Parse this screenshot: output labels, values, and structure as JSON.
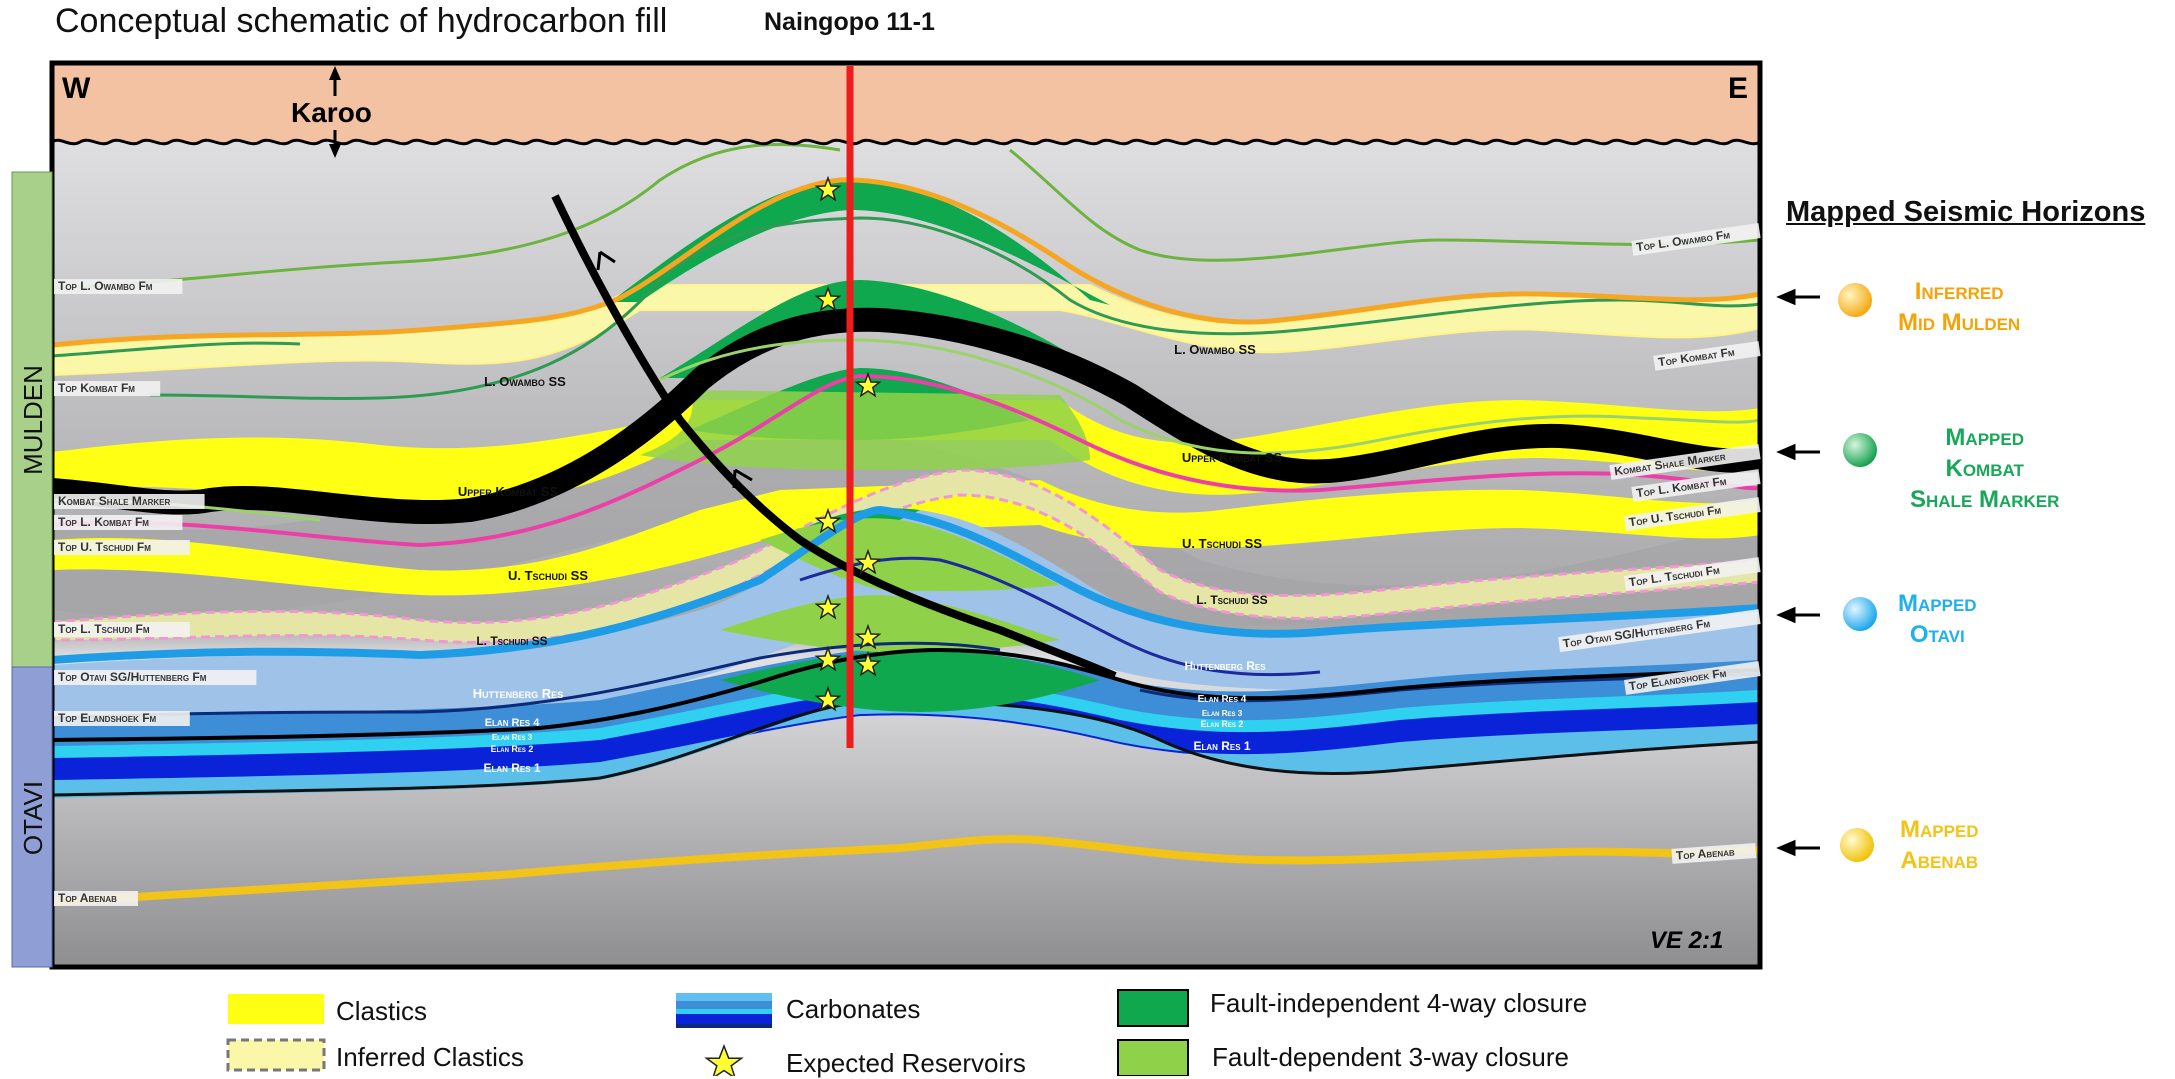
{
  "title": "Conceptual schematic of hydrocarbon fill",
  "well": "Naingopo 11-1",
  "compass": {
    "west": "W",
    "east": "E"
  },
  "karoo": "Karoo",
  "ve": "VE 2:1",
  "groups": {
    "mulden": "MULDEN",
    "otavi": "OTAVI"
  },
  "left_labels": [
    "Top L. Owambo Fm",
    "Top Kombat Fm",
    "Kombat Shale Marker",
    "Top L. Kombat Fm",
    "Top U. Tschudi Fm",
    "Top L. Tschudi Fm",
    "Top Otavi SG/Huttenberg Fm",
    "Top Elandshoek Fm",
    "Top Abenab"
  ],
  "right_labels": [
    "Top L. Owambo Fm",
    "Top Kombat Fm",
    "Kombat Shale Marker",
    "Top L. Kombat Fm",
    "Top U. Tschudi Fm",
    "Top L. Tschudi Fm",
    "Top Otavi SG/Huttenberg Fm",
    "Top Elandshoek Fm",
    "Top Abenab"
  ],
  "unit_labels": {
    "l_owambo_ss": "L. Owambo SS",
    "upper_kombat_ss": "Upper Kombat SS",
    "u_tschudi_ss": "U. Tschudi SS",
    "l_tschudi_ss": "L. Tschudi SS",
    "huttenberg_res": "Huttenberg Res",
    "elan_res_4": "Elan Res 4",
    "elan_res_3": "Elan Res 3",
    "elan_res_2": "Elan Res 2",
    "elan_res_1": "Elan Res 1"
  },
  "horizons": {
    "title": "Mapped Seismic Horizons",
    "items": [
      {
        "lines": [
          "Inferred",
          "Mid Mulden"
        ],
        "color": "#f5b324"
      },
      {
        "lines": [
          "Mapped",
          "Kombat",
          "Shale Marker"
        ],
        "color": "#18a85a"
      },
      {
        "lines": [
          "Mapped",
          "Otavi"
        ],
        "color": "#1fb0ee"
      },
      {
        "lines": [
          "Mapped",
          "Abenab"
        ],
        "color": "#f2c417"
      }
    ]
  },
  "legend": {
    "clastics": "Clastics",
    "inferred_clastics": "Inferred Clastics",
    "carbonates": "Carbonates",
    "expected_reservoirs": "Expected Reservoirs",
    "four_way": "Fault-independent 4-way closure",
    "three_way": "Fault-dependent 3-way closure"
  },
  "colors": {
    "karoo": "#f2c2a2",
    "clastic": "#ffff14",
    "inferred_clastic": "#fbf7a8",
    "green_4way": "#10a84e",
    "green_3way": "#8fd24a",
    "well": "#ee1c1c",
    "star": "#ffff33",
    "carb_light": "#60bfee",
    "carb_mid": "#3d8ed6",
    "carb_blue": "#0a22d8",
    "carb_navy": "#0c2a7a",
    "pink": "#ec3fa8",
    "abenab": "#f5c518"
  }
}
